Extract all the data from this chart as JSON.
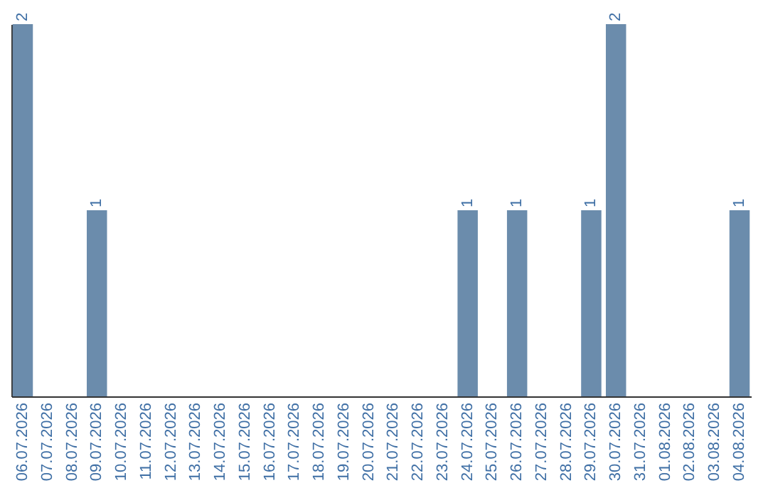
{
  "chart_data": {
    "type": "bar",
    "categories": [
      "06.07.2026",
      "07.07.2026",
      "08.07.2026",
      "09.07.2026",
      "10.07.2026",
      "11.07.2026",
      "12.07.2026",
      "13.07.2026",
      "14.07.2026",
      "15.07.2026",
      "16.07.2026",
      "17.07.2026",
      "18.07.2026",
      "19.07.2026",
      "20.07.2026",
      "21.07.2026",
      "22.07.2026",
      "23.07.2026",
      "24.07.2026",
      "25.07.2026",
      "26.07.2026",
      "27.07.2026",
      "28.07.2026",
      "29.07.2026",
      "30.07.2026",
      "31.07.2026",
      "01.08.2026",
      "02.08.2026",
      "03.08.2026",
      "04.08.2026"
    ],
    "values": [
      2,
      0,
      0,
      1,
      0,
      0,
      0,
      0,
      0,
      0,
      0,
      0,
      0,
      0,
      0,
      0,
      0,
      0,
      1,
      0,
      1,
      0,
      0,
      1,
      2,
      0,
      0,
      0,
      0,
      1
    ],
    "value_labels": [
      "2",
      null,
      null,
      "1",
      null,
      null,
      null,
      null,
      null,
      null,
      null,
      null,
      null,
      null,
      null,
      null,
      null,
      null,
      "1",
      null,
      "1",
      null,
      null,
      "1",
      "2",
      null,
      null,
      null,
      null,
      "1"
    ],
    "color": "#6b8cac",
    "ylim": [
      0,
      2
    ]
  }
}
